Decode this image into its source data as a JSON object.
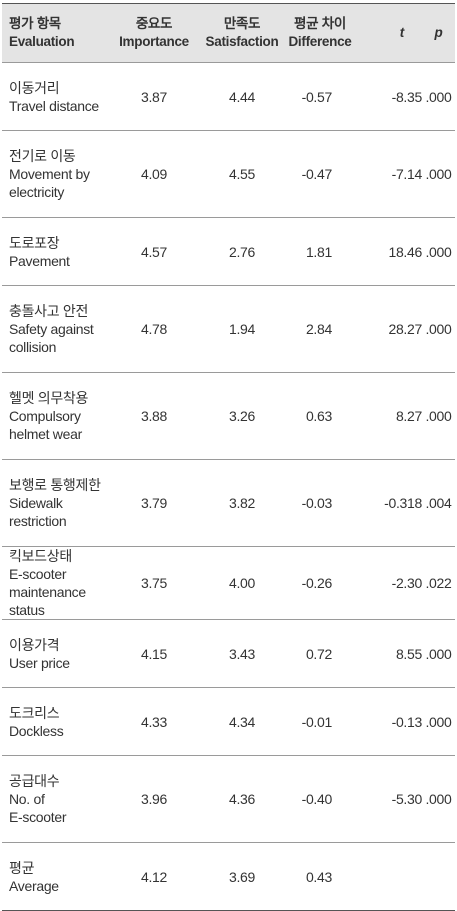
{
  "table": {
    "header": {
      "item": [
        "평가 항목",
        "Evaluation"
      ],
      "importance": [
        "중요도",
        "Importance"
      ],
      "satisfaction": [
        "만족도",
        "Satisfaction"
      ],
      "difference": [
        "평균 차이",
        "Difference"
      ],
      "t": "t",
      "p": "p"
    },
    "rows": [
      {
        "ko": "이동거리",
        "en": [
          "Travel distance"
        ],
        "importance": "3.87",
        "satisfaction": "4.44",
        "difference": "-0.57",
        "t": "-8.35",
        "p": ".000"
      },
      {
        "ko": "전기로 이동",
        "en": [
          "Movement by",
          "electricity"
        ],
        "importance": "4.09",
        "satisfaction": "4.55",
        "difference": "-0.47",
        "t": "-7.14",
        "p": ".000"
      },
      {
        "ko": "도로포장",
        "en": [
          "Pavement"
        ],
        "importance": "4.57",
        "satisfaction": "2.76",
        "difference": "1.81",
        "t": "18.46",
        "p": ".000"
      },
      {
        "ko": "충돌사고 안전",
        "en": [
          "Safety against",
          "collision"
        ],
        "importance": "4.78",
        "satisfaction": "1.94",
        "difference": "2.84",
        "t": "28.27",
        "p": ".000"
      },
      {
        "ko": "헬멧 의무착용",
        "en": [
          "Compulsory",
          "helmet wear"
        ],
        "importance": "3.88",
        "satisfaction": "3.26",
        "difference": "0.63",
        "t": "8.27",
        "p": ".000"
      },
      {
        "ko": "보행로 통행제한",
        "en": [
          "Sidewalk",
          "restriction"
        ],
        "importance": "3.79",
        "satisfaction": "3.82",
        "difference": "-0.03",
        "t": "-0.318",
        "p": ".004"
      },
      {
        "ko": "킥보드상태",
        "en": [
          "E-scooter",
          "maintenance",
          "status"
        ],
        "importance": "3.75",
        "satisfaction": "4.00",
        "difference": "-0.26",
        "t": "-2.30",
        "p": ".022"
      },
      {
        "ko": "이용가격",
        "en": [
          "User price"
        ],
        "importance": "4.15",
        "satisfaction": "3.43",
        "difference": "0.72",
        "t": "8.55",
        "p": ".000"
      },
      {
        "ko": "도크리스",
        "en": [
          "Dockless"
        ],
        "importance": "4.33",
        "satisfaction": "4.34",
        "difference": "-0.01",
        "t": "-0.13",
        "p": ".000"
      },
      {
        "ko": "공급대수",
        "en": [
          "No. of",
          "E-scooter"
        ],
        "importance": "3.96",
        "satisfaction": "4.36",
        "difference": "-0.40",
        "t": "-5.30",
        "p": ".000"
      },
      {
        "ko": "평균",
        "en": [
          "Average"
        ],
        "importance": "4.12",
        "satisfaction": "3.69",
        "difference": "0.43"
      }
    ]
  }
}
